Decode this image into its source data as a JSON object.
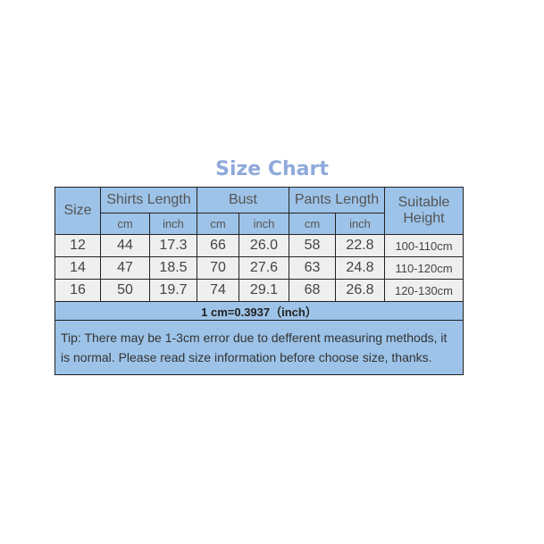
{
  "title": "Size Chart",
  "headers": {
    "size": "Size",
    "shirts": "Shirts Length",
    "bust": "Bust",
    "pants": "Pants Length",
    "height": "Suitable Height",
    "cm": "cm",
    "inch": "inch"
  },
  "rows": [
    [
      "12",
      "44",
      "17.3",
      "66",
      "26.0",
      "58",
      "22.8",
      "100-110cm"
    ],
    [
      "14",
      "47",
      "18.5",
      "70",
      "27.6",
      "63",
      "24.8",
      "110-120cm"
    ],
    [
      "16",
      "50",
      "19.7",
      "74",
      "29.1",
      "68",
      "26.8",
      "120-130cm"
    ]
  ],
  "conversion": "1 cm=0.3937（inch）",
  "tip": "Tip: There may be 1-3cm error due to defferent measuring methods, it is normal. Please read size information before choose size, thanks.",
  "colors": {
    "header": "#9dc3e8",
    "row": "#efefef",
    "title": "#8fa9db"
  }
}
